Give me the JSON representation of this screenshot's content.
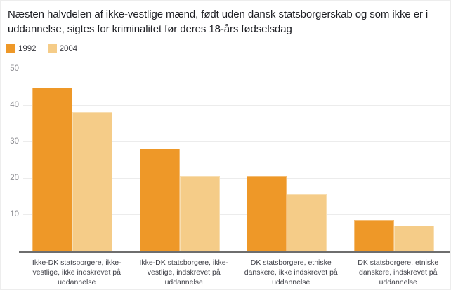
{
  "title": "Næsten halvdelen af ikke-vestlige mænd, født uden dansk statsborgerskab og som ikke er i uddannelse, sigtes for kriminalitet før deres 18-års fødselsdag",
  "legend": {
    "items": [
      {
        "label": "1992",
        "color": "#EE9828"
      },
      {
        "label": "2004",
        "color": "#F5CC88"
      }
    ]
  },
  "colors": {
    "series_1992": "#EE9828",
    "series_2004": "#F5CC88",
    "gridline": "#ececec",
    "axis_line": "#6e6e6e",
    "title_text": "#1e1f24",
    "tick_text": "#8f8f94",
    "category_text": "#3e3f47"
  },
  "chart_data": {
    "type": "bar",
    "title": "Næsten halvdelen af ikke-vestlige mænd, født uden dansk statsborgerskab og som ikke er i uddannelse, sigtes for kriminalitet før deres 18-års fødselsdag",
    "categories": [
      "Ikke-DK statsborgere, ikke-vestlige, ikke indskrevet på uddannelse",
      "Ikke-DK statsborgere, ikke-vestlige, indskrevet på uddannelse",
      "DK statsborgere, etniske danskere, ikke indskrevet på uddannelse",
      "DK statsborgere, etniske danskere, indskrevet på uddannelse"
    ],
    "category_lines": [
      [
        "Ikke-DK statsborgere, ikke-",
        "vestlige, ikke indskrevet på",
        "uddannelse"
      ],
      [
        "Ikke-DK statsborgere, ikke-",
        "vestlige, indskrevet på",
        "uddannelse"
      ],
      [
        "DK statsborgere, etniske",
        "danskere, ikke indskrevet på",
        "uddannelse"
      ],
      [
        "DK statsborgere, etniske",
        "danskere, indskrevet på",
        "uddannelse"
      ]
    ],
    "series": [
      {
        "name": "1992",
        "color": "#EE9828",
        "values": [
          45,
          28.3,
          20.8,
          8.6
        ]
      },
      {
        "name": "2004",
        "color": "#F5CC88",
        "values": [
          38.2,
          20.8,
          15.8,
          7.2
        ]
      }
    ],
    "xlabel": "",
    "ylabel": "",
    "y_ticks": [
      10,
      20,
      30,
      40,
      50
    ],
    "ylim": [
      0,
      52
    ],
    "grid": true,
    "legend_position": "top-left"
  }
}
